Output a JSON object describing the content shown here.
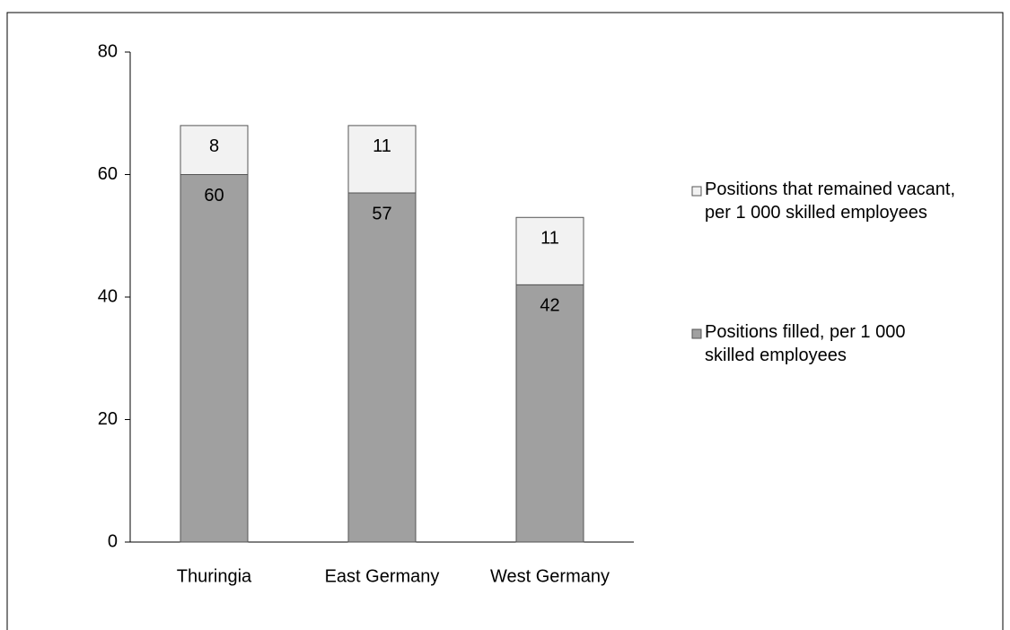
{
  "chart_data": {
    "type": "stacked_bar",
    "categories": [
      "Thuringia",
      "East Germany",
      "West Germany"
    ],
    "series": [
      {
        "name": "Positions filled, per 1 000 skilled employees",
        "color": "#a0a0a0",
        "values": [
          60,
          57,
          42
        ]
      },
      {
        "name": "Positions that remained vacant, per 1 000 skilled employees",
        "color": "#f2f2f2",
        "values": [
          8,
          11,
          11
        ]
      }
    ],
    "ylim": [
      0,
      80
    ],
    "yticks": [
      0,
      20,
      40,
      60,
      80
    ],
    "grid": false,
    "legend": "right"
  }
}
